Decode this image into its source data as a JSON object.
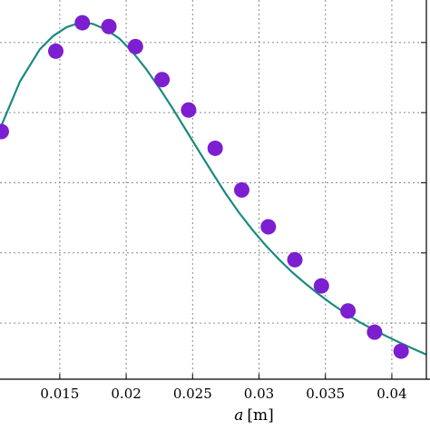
{
  "chart_data": {
    "type": "line",
    "title": "",
    "xlabel_var": "a",
    "xlabel_unit": "[m]",
    "ylabel": "",
    "xlim": [
      0.0105,
      0.0426
    ],
    "ylim": [
      0,
      1
    ],
    "grid": true,
    "x_ticks": [
      0.015,
      0.02,
      0.025,
      0.03,
      0.035,
      0.04
    ],
    "x_tick_labels": [
      "0.015",
      "0.02",
      "0.025",
      "0.03",
      "0.035",
      "0.04"
    ],
    "y_gridlines": [
      0.148,
      0.333,
      0.518,
      0.703,
      0.888
    ],
    "series": [
      {
        "kind": "curve",
        "color": "#1a8a7e",
        "x": [
          0.0105,
          0.012,
          0.0135,
          0.0145,
          0.0155,
          0.0165,
          0.0175,
          0.0185,
          0.0195,
          0.0205,
          0.0215,
          0.0225,
          0.0235,
          0.0245,
          0.0255,
          0.0265,
          0.0275,
          0.0285,
          0.0295,
          0.0305,
          0.0315,
          0.0325,
          0.0335,
          0.0345,
          0.0355,
          0.0365,
          0.0375,
          0.0385,
          0.0395,
          0.0405,
          0.0415,
          0.0426
        ],
        "y": [
          0.66,
          0.785,
          0.87,
          0.905,
          0.928,
          0.94,
          0.937,
          0.922,
          0.898,
          0.862,
          0.818,
          0.768,
          0.714,
          0.657,
          0.6,
          0.544,
          0.489,
          0.439,
          0.394,
          0.353,
          0.316,
          0.282,
          0.252,
          0.224,
          0.198,
          0.174,
          0.152,
          0.133,
          0.115,
          0.098,
          0.082,
          0.065
        ]
      },
      {
        "kind": "markers",
        "color": "#7b1fd1",
        "x": [
          0.0106,
          0.0147,
          0.0167,
          0.0187,
          0.0207,
          0.0227,
          0.0247,
          0.0267,
          0.0287,
          0.0307,
          0.0327,
          0.0347,
          0.0367,
          0.0387,
          0.0407
        ],
        "y": [
          0.653,
          0.865,
          0.94,
          0.93,
          0.877,
          0.79,
          0.71,
          0.609,
          0.499,
          0.402,
          0.315,
          0.246,
          0.18,
          0.124,
          0.074
        ]
      }
    ]
  }
}
